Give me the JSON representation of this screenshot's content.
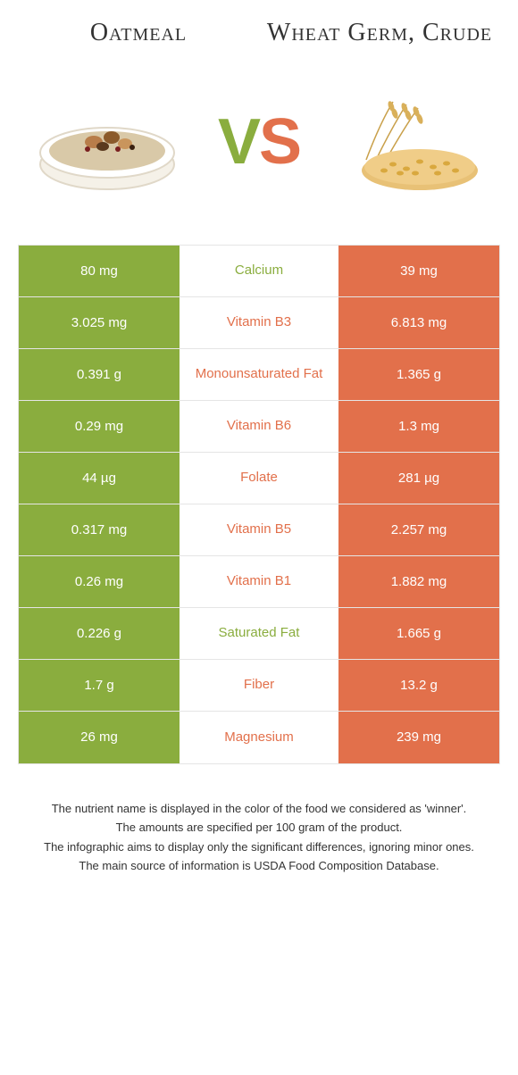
{
  "colors": {
    "left": "#8aad3e",
    "right": "#e2704b",
    "border": "#e5e5e5",
    "text": "#333333",
    "white": "#ffffff"
  },
  "titles": {
    "left": "Oatmeal",
    "right": "Wheat Germ, Crude"
  },
  "vs": {
    "v": "V",
    "s": "S"
  },
  "rows": [
    {
      "left": "80 mg",
      "label": "Calcium",
      "right": "39 mg",
      "winner": "left"
    },
    {
      "left": "3.025 mg",
      "label": "Vitamin B3",
      "right": "6.813 mg",
      "winner": "right"
    },
    {
      "left": "0.391 g",
      "label": "Monounsaturated Fat",
      "right": "1.365 g",
      "winner": "right"
    },
    {
      "left": "0.29 mg",
      "label": "Vitamin B6",
      "right": "1.3 mg",
      "winner": "right"
    },
    {
      "left": "44 µg",
      "label": "Folate",
      "right": "281 µg",
      "winner": "right"
    },
    {
      "left": "0.317 mg",
      "label": "Vitamin B5",
      "right": "2.257 mg",
      "winner": "right"
    },
    {
      "left": "0.26 mg",
      "label": "Vitamin B1",
      "right": "1.882 mg",
      "winner": "right"
    },
    {
      "left": "0.226 g",
      "label": "Saturated Fat",
      "right": "1.665 g",
      "winner": "left"
    },
    {
      "left": "1.7 g",
      "label": "Fiber",
      "right": "13.2 g",
      "winner": "right"
    },
    {
      "left": "26 mg",
      "label": "Magnesium",
      "right": "239 mg",
      "winner": "right"
    }
  ],
  "footnotes": [
    "The nutrient name is displayed in the color of the food we considered as 'winner'.",
    "The amounts are specified per 100 gram of the product.",
    "The infographic aims to display only the significant differences, ignoring minor ones.",
    "The main source of information is USDA Food Composition Database."
  ]
}
